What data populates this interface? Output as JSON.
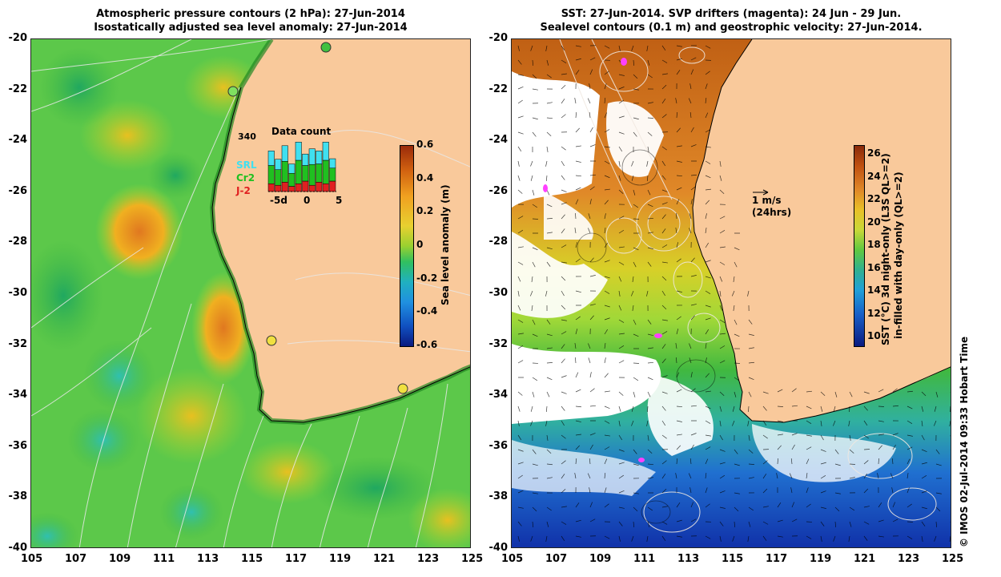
{
  "left_panel": {
    "title_line1": "Atmospheric pressure contours (2 hPa): 27-Jun-2014",
    "title_line2": "Isostatically adjusted sea level anomaly: 27-Jun-2014",
    "colorbar": {
      "label": "Sea level anomaly (m)",
      "ticks": [
        "0.6",
        "0.4",
        "0.2",
        "0",
        "-0.2",
        "-0.4",
        "-0.6"
      ]
    },
    "inset": {
      "title": "Data count",
      "max_label": "340",
      "legend": [
        {
          "name": "SRL",
          "color": "#40e0f0"
        },
        {
          "name": "Cr2",
          "color": "#20c020"
        },
        {
          "name": "J-2",
          "color": "#e02020"
        }
      ],
      "x_ticks": [
        "-5d",
        "0",
        "5"
      ],
      "bars": [
        {
          "j2": 0.15,
          "cr2": 0.35,
          "srl": 0.28
        },
        {
          "j2": 0.12,
          "cr2": 0.3,
          "srl": 0.2
        },
        {
          "j2": 0.18,
          "cr2": 0.4,
          "srl": 0.3
        },
        {
          "j2": 0.1,
          "cr2": 0.25,
          "srl": 0.18
        },
        {
          "j2": 0.15,
          "cr2": 0.45,
          "srl": 0.35
        },
        {
          "j2": 0.2,
          "cr2": 0.3,
          "srl": 0.22
        },
        {
          "j2": 0.12,
          "cr2": 0.4,
          "srl": 0.3
        },
        {
          "j2": 0.18,
          "cr2": 0.35,
          "srl": 0.25
        },
        {
          "j2": 0.15,
          "cr2": 0.45,
          "srl": 0.35
        },
        {
          "j2": 0.2,
          "cr2": 0.25,
          "srl": 0.18
        }
      ]
    }
  },
  "right_panel": {
    "title_line1": "SST: 27-Jun-2014. SVP drifters (magenta): 24 Jun - 29 Jun.",
    "title_line2": "Sealevel contours (0.1 m) and geostrophic velocity: 27-Jun-2014.",
    "colorbar": {
      "label_line1": "SST (°C) 3d night-only (L3S QL>=2)",
      "label_line2": "in-filled with day-only (QL>=2)",
      "ticks": [
        "26",
        "24",
        "22",
        "20",
        "18",
        "16",
        "14",
        "12",
        "10"
      ]
    },
    "velocity_scale": {
      "label1": "1 m/s",
      "label2": "(24hrs)"
    }
  },
  "axes": {
    "x_ticks": [
      "105",
      "107",
      "109",
      "111",
      "113",
      "115",
      "117",
      "119",
      "121",
      "123",
      "125"
    ],
    "y_ticks": [
      "-20",
      "-22",
      "-24",
      "-26",
      "-28",
      "-30",
      "-32",
      "-34",
      "-36",
      "-38",
      "-40"
    ]
  },
  "credit": "© IMOS 02-Jul-2014 09:33 Hobart Time",
  "colors": {
    "land": "#f9c99b",
    "ocean_green": "#4fc24f",
    "warm_sst": "#c8641a",
    "cold_sst": "#1a3cb4",
    "drifter": "#ff40ff"
  }
}
